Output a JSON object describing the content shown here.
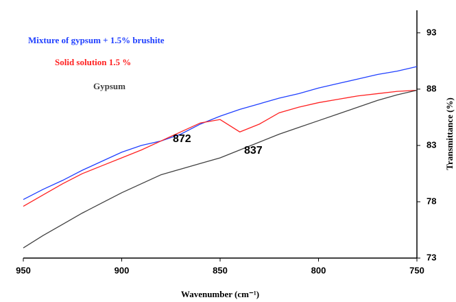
{
  "chart_data": {
    "type": "line",
    "x_label": "Wavenumber (cm⁻¹)",
    "y_label": "Transmittance (%)",
    "x": [
      950,
      940,
      930,
      920,
      910,
      900,
      890,
      880,
      870,
      860,
      850,
      840,
      830,
      820,
      810,
      800,
      790,
      780,
      770,
      760,
      750
    ],
    "series": [
      {
        "name": "Mixture of gypsum + 1.5% brushite",
        "color": "#1f3fff",
        "values": [
          78.2,
          79.1,
          79.9,
          80.8,
          81.6,
          82.4,
          83.0,
          83.4,
          84.0,
          84.9,
          85.6,
          86.2,
          86.7,
          87.2,
          87.6,
          88.1,
          88.5,
          88.9,
          89.3,
          89.6,
          90.0
        ]
      },
      {
        "name": "Solid solution  1.5 %",
        "color": "#ff2020",
        "values": [
          77.6,
          78.6,
          79.6,
          80.5,
          81.2,
          81.9,
          82.6,
          83.4,
          84.2,
          85.0,
          85.3,
          84.2,
          84.9,
          85.9,
          86.4,
          86.8,
          87.1,
          87.4,
          87.6,
          87.8,
          87.9
        ]
      },
      {
        "name": "Gypsum",
        "color": "#404040",
        "values": [
          73.9,
          75.0,
          76.0,
          77.0,
          77.9,
          78.8,
          79.6,
          80.4,
          80.9,
          81.4,
          81.9,
          82.6,
          83.3,
          84.0,
          84.6,
          85.2,
          85.8,
          86.4,
          87.0,
          87.5,
          87.9
        ]
      }
    ],
    "annotations": [
      {
        "text": "872",
        "color": "#1f4fd0"
      },
      {
        "text": "837",
        "color": "#e02020"
      }
    ],
    "xlim": [
      950,
      750
    ],
    "xticks": [
      950,
      900,
      850,
      800,
      750
    ],
    "ylim": [
      73,
      95
    ],
    "yticks": [
      73,
      78,
      83,
      88,
      93
    ]
  }
}
